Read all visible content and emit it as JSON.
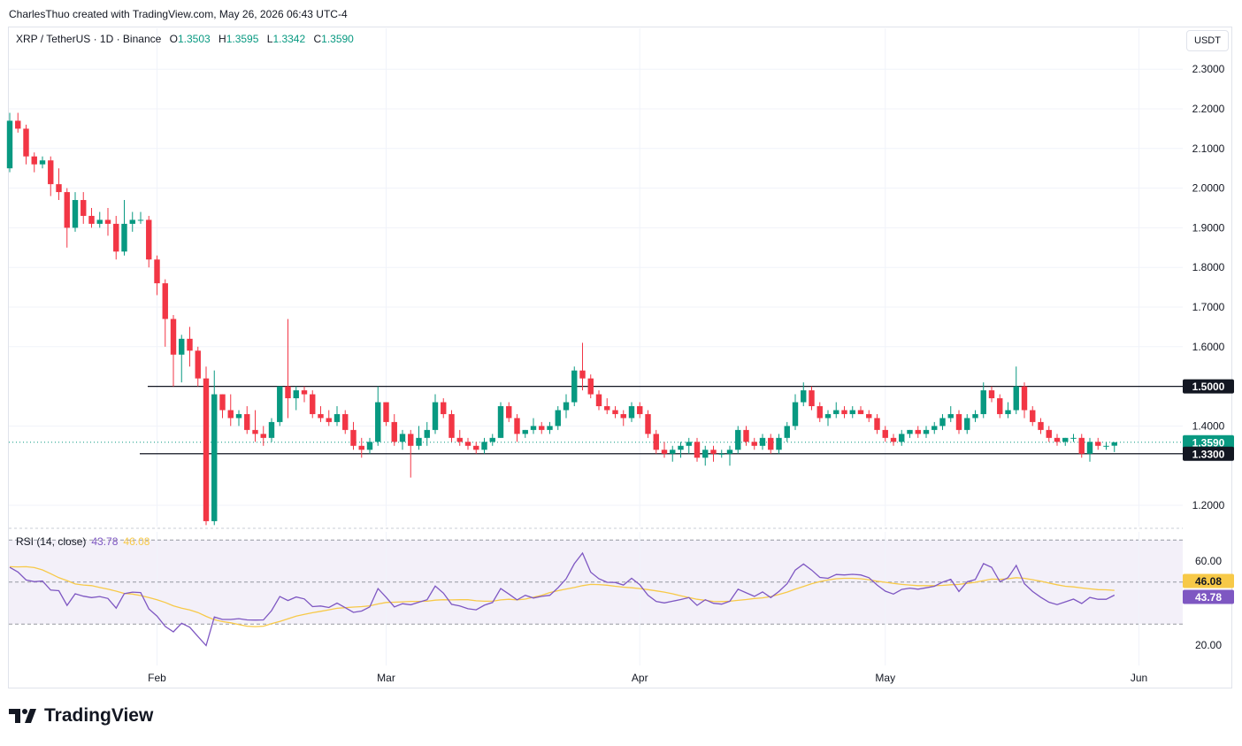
{
  "credit": "CharlesThuo created with TradingView.com, May 26, 2026 06:43 UTC-4",
  "legend": {
    "symbol": "XRP / TetherUS · 1D · Binance",
    "o_label": "O",
    "o": "1.3503",
    "h_label": "H",
    "h": "1.3595",
    "l_label": "L",
    "l": "1.3342",
    "c_label": "C",
    "c": "1.3590"
  },
  "currency": "USDT",
  "rsi_legend": {
    "label": "RSI (14, close)",
    "rsi": "43.78",
    "ma": "46.08"
  },
  "brand": "TradingView",
  "colors": {
    "up": "#089981",
    "down": "#f23645",
    "rsi": "#7e57c2",
    "rsi_ma": "#f7c948"
  },
  "chart_data": [
    {
      "type": "candlestick",
      "title": "XRP / TetherUS · 1D · Binance",
      "y_ticks": [
        1.2,
        1.4,
        1.5,
        1.6,
        1.7,
        1.8,
        1.9,
        2.0,
        2.1,
        2.2,
        2.3
      ],
      "ylim": [
        1.15,
        2.33
      ],
      "x_labels": [
        "Feb",
        "Mar",
        "Apr",
        "May",
        "Jun"
      ],
      "x_label_days": [
        18,
        46,
        77,
        107,
        138
      ],
      "horizontal_lines": [
        {
          "value": 1.5,
          "label": "1.5000"
        },
        {
          "value": 1.33,
          "label": "1.3300"
        }
      ],
      "last_price": {
        "value": 1.359,
        "label": "1.3590"
      },
      "ohlc": [
        [
          2.05,
          2.19,
          2.04,
          2.17
        ],
        [
          2.17,
          2.19,
          2.14,
          2.15
        ],
        [
          2.15,
          2.16,
          2.06,
          2.08
        ],
        [
          2.08,
          2.09,
          2.04,
          2.06
        ],
        [
          2.06,
          2.08,
          2.05,
          2.07
        ],
        [
          2.07,
          2.08,
          1.98,
          2.01
        ],
        [
          2.01,
          2.05,
          1.97,
          1.99
        ],
        [
          1.99,
          2.0,
          1.85,
          1.9
        ],
        [
          1.9,
          1.99,
          1.89,
          1.97
        ],
        [
          1.97,
          1.99,
          1.91,
          1.93
        ],
        [
          1.93,
          1.95,
          1.9,
          1.91
        ],
        [
          1.91,
          1.94,
          1.9,
          1.92
        ],
        [
          1.92,
          1.95,
          1.88,
          1.91
        ],
        [
          1.91,
          1.93,
          1.82,
          1.84
        ],
        [
          1.84,
          1.97,
          1.83,
          1.91
        ],
        [
          1.91,
          1.94,
          1.89,
          1.92
        ],
        [
          1.92,
          1.94,
          1.91,
          1.92
        ],
        [
          1.92,
          1.93,
          1.8,
          1.82
        ],
        [
          1.82,
          1.83,
          1.73,
          1.76
        ],
        [
          1.76,
          1.77,
          1.6,
          1.67
        ],
        [
          1.67,
          1.68,
          1.5,
          1.58
        ],
        [
          1.58,
          1.63,
          1.51,
          1.62
        ],
        [
          1.62,
          1.65,
          1.55,
          1.59
        ],
        [
          1.59,
          1.6,
          1.5,
          1.52
        ],
        [
          1.52,
          1.55,
          1.15,
          1.16
        ],
        [
          1.16,
          1.54,
          1.15,
          1.48
        ],
        [
          1.48,
          1.48,
          1.42,
          1.44
        ],
        [
          1.44,
          1.48,
          1.4,
          1.42
        ],
        [
          1.42,
          1.44,
          1.4,
          1.43
        ],
        [
          1.43,
          1.45,
          1.38,
          1.39
        ],
        [
          1.39,
          1.44,
          1.36,
          1.38
        ],
        [
          1.38,
          1.4,
          1.35,
          1.37
        ],
        [
          1.37,
          1.42,
          1.36,
          1.41
        ],
        [
          1.41,
          1.5,
          1.4,
          1.5
        ],
        [
          1.5,
          1.67,
          1.42,
          1.47
        ],
        [
          1.47,
          1.5,
          1.44,
          1.49
        ],
        [
          1.49,
          1.5,
          1.46,
          1.48
        ],
        [
          1.48,
          1.49,
          1.42,
          1.43
        ],
        [
          1.43,
          1.45,
          1.41,
          1.42
        ],
        [
          1.42,
          1.44,
          1.4,
          1.41
        ],
        [
          1.41,
          1.45,
          1.4,
          1.43
        ],
        [
          1.43,
          1.44,
          1.38,
          1.39
        ],
        [
          1.39,
          1.41,
          1.34,
          1.35
        ],
        [
          1.35,
          1.37,
          1.32,
          1.34
        ],
        [
          1.34,
          1.37,
          1.33,
          1.36
        ],
        [
          1.36,
          1.5,
          1.35,
          1.46
        ],
        [
          1.46,
          1.46,
          1.4,
          1.41
        ],
        [
          1.41,
          1.43,
          1.35,
          1.36
        ],
        [
          1.36,
          1.39,
          1.34,
          1.38
        ],
        [
          1.38,
          1.39,
          1.27,
          1.35
        ],
        [
          1.35,
          1.4,
          1.34,
          1.37
        ],
        [
          1.37,
          1.41,
          1.35,
          1.39
        ],
        [
          1.39,
          1.48,
          1.38,
          1.46
        ],
        [
          1.46,
          1.47,
          1.42,
          1.43
        ],
        [
          1.43,
          1.44,
          1.36,
          1.37
        ],
        [
          1.37,
          1.39,
          1.35,
          1.36
        ],
        [
          1.36,
          1.37,
          1.34,
          1.35
        ],
        [
          1.35,
          1.36,
          1.33,
          1.34
        ],
        [
          1.34,
          1.37,
          1.33,
          1.36
        ],
        [
          1.36,
          1.38,
          1.35,
          1.37
        ],
        [
          1.37,
          1.46,
          1.37,
          1.45
        ],
        [
          1.45,
          1.46,
          1.41,
          1.42
        ],
        [
          1.42,
          1.43,
          1.36,
          1.38
        ],
        [
          1.38,
          1.39,
          1.37,
          1.39
        ],
        [
          1.39,
          1.42,
          1.38,
          1.4
        ],
        [
          1.4,
          1.41,
          1.38,
          1.39
        ],
        [
          1.39,
          1.41,
          1.38,
          1.4
        ],
        [
          1.4,
          1.45,
          1.39,
          1.44
        ],
        [
          1.44,
          1.48,
          1.42,
          1.46
        ],
        [
          1.46,
          1.55,
          1.45,
          1.54
        ],
        [
          1.54,
          1.61,
          1.49,
          1.52
        ],
        [
          1.52,
          1.53,
          1.47,
          1.48
        ],
        [
          1.48,
          1.49,
          1.44,
          1.45
        ],
        [
          1.45,
          1.47,
          1.43,
          1.44
        ],
        [
          1.44,
          1.45,
          1.42,
          1.43
        ],
        [
          1.43,
          1.44,
          1.4,
          1.42
        ],
        [
          1.42,
          1.46,
          1.41,
          1.45
        ],
        [
          1.45,
          1.46,
          1.42,
          1.43
        ],
        [
          1.43,
          1.44,
          1.37,
          1.38
        ],
        [
          1.38,
          1.39,
          1.33,
          1.34
        ],
        [
          1.34,
          1.36,
          1.32,
          1.33
        ],
        [
          1.33,
          1.35,
          1.31,
          1.34
        ],
        [
          1.34,
          1.36,
          1.32,
          1.35
        ],
        [
          1.35,
          1.37,
          1.33,
          1.36
        ],
        [
          1.36,
          1.37,
          1.31,
          1.32
        ],
        [
          1.32,
          1.35,
          1.3,
          1.34
        ],
        [
          1.34,
          1.35,
          1.31,
          1.33
        ],
        [
          1.33,
          1.34,
          1.32,
          1.33
        ],
        [
          1.33,
          1.35,
          1.3,
          1.34
        ],
        [
          1.34,
          1.4,
          1.33,
          1.39
        ],
        [
          1.39,
          1.4,
          1.35,
          1.36
        ],
        [
          1.36,
          1.37,
          1.34,
          1.35
        ],
        [
          1.35,
          1.38,
          1.34,
          1.37
        ],
        [
          1.37,
          1.38,
          1.33,
          1.34
        ],
        [
          1.34,
          1.38,
          1.33,
          1.37
        ],
        [
          1.37,
          1.41,
          1.36,
          1.4
        ],
        [
          1.4,
          1.48,
          1.39,
          1.46
        ],
        [
          1.46,
          1.51,
          1.45,
          1.49
        ],
        [
          1.49,
          1.5,
          1.44,
          1.45
        ],
        [
          1.45,
          1.46,
          1.41,
          1.42
        ],
        [
          1.42,
          1.44,
          1.4,
          1.43
        ],
        [
          1.43,
          1.46,
          1.42,
          1.44
        ],
        [
          1.44,
          1.45,
          1.42,
          1.43
        ],
        [
          1.43,
          1.45,
          1.42,
          1.44
        ],
        [
          1.44,
          1.45,
          1.43,
          1.43
        ],
        [
          1.43,
          1.44,
          1.41,
          1.42
        ],
        [
          1.42,
          1.43,
          1.38,
          1.39
        ],
        [
          1.39,
          1.4,
          1.36,
          1.37
        ],
        [
          1.37,
          1.38,
          1.35,
          1.36
        ],
        [
          1.36,
          1.39,
          1.35,
          1.38
        ],
        [
          1.38,
          1.39,
          1.37,
          1.39
        ],
        [
          1.39,
          1.4,
          1.37,
          1.38
        ],
        [
          1.38,
          1.4,
          1.37,
          1.39
        ],
        [
          1.39,
          1.41,
          1.38,
          1.4
        ],
        [
          1.4,
          1.43,
          1.39,
          1.42
        ],
        [
          1.42,
          1.45,
          1.41,
          1.43
        ],
        [
          1.43,
          1.44,
          1.38,
          1.39
        ],
        [
          1.39,
          1.43,
          1.38,
          1.42
        ],
        [
          1.42,
          1.44,
          1.41,
          1.43
        ],
        [
          1.43,
          1.51,
          1.42,
          1.49
        ],
        [
          1.49,
          1.5,
          1.46,
          1.47
        ],
        [
          1.47,
          1.48,
          1.42,
          1.43
        ],
        [
          1.43,
          1.46,
          1.42,
          1.44
        ],
        [
          1.44,
          1.55,
          1.43,
          1.5
        ],
        [
          1.5,
          1.51,
          1.42,
          1.44
        ],
        [
          1.44,
          1.45,
          1.4,
          1.41
        ],
        [
          1.41,
          1.42,
          1.38,
          1.39
        ],
        [
          1.39,
          1.4,
          1.36,
          1.37
        ],
        [
          1.37,
          1.38,
          1.35,
          1.36
        ],
        [
          1.36,
          1.37,
          1.35,
          1.37
        ],
        [
          1.37,
          1.38,
          1.36,
          1.37
        ],
        [
          1.37,
          1.38,
          1.32,
          1.33
        ],
        [
          1.33,
          1.37,
          1.31,
          1.36
        ],
        [
          1.36,
          1.37,
          1.34,
          1.35
        ],
        [
          1.35,
          1.36,
          1.34,
          1.35
        ],
        [
          1.3503,
          1.3595,
          1.3342,
          1.359
        ]
      ]
    },
    {
      "type": "line",
      "title": "RSI (14, close)",
      "y_ticks": [
        20.0,
        60.0
      ],
      "ylim": [
        14,
        73
      ],
      "bands": [
        30,
        50,
        70
      ],
      "series": [
        {
          "name": "RSI",
          "color": "#7e57c2",
          "values": [
            57.0,
            54.8,
            51.0,
            50.2,
            50.5,
            46.2,
            45.9,
            38.9,
            44.4,
            43.3,
            42.6,
            43.1,
            42.2,
            37.6,
            44.5,
            45.2,
            45.0,
            37.2,
            33.8,
            28.9,
            26.3,
            30.4,
            28.5,
            24.1,
            19.8,
            33.4,
            32.2,
            32.2,
            32.6,
            32.0,
            31.9,
            32.0,
            36.4,
            43.1,
            41.2,
            42.9,
            42.0,
            38.3,
            38.6,
            37.9,
            40.0,
            37.8,
            35.6,
            36.2,
            38.2,
            46.9,
            42.8,
            38.2,
            39.7,
            39.2,
            40.4,
            41.6,
            48.1,
            44.7,
            39.4,
            38.6,
            37.3,
            36.8,
            39.0,
            40.3,
            46.9,
            44.3,
            41.5,
            43.7,
            42.4,
            43.2,
            43.7,
            47.3,
            51.6,
            58.8,
            63.8,
            54.7,
            51.6,
            49.9,
            49.8,
            48.6,
            51.8,
            48.7,
            43.7,
            40.8,
            40.1,
            40.9,
            41.7,
            42.6,
            38.9,
            41.6,
            39.9,
            39.5,
            40.9,
            46.6,
            44.9,
            43.2,
            45.3,
            42.6,
            45.5,
            49.2,
            55.7,
            58.6,
            55.7,
            52.2,
            51.8,
            53.6,
            53.4,
            53.7,
            53.4,
            52.1,
            48.6,
            45.7,
            44.3,
            46.5,
            47.1,
            46.6,
            47.3,
            48.0,
            50.0,
            51.3,
            45.5,
            50.1,
            51.2,
            58.8,
            57.0,
            50.2,
            52.1,
            57.9,
            49.2,
            45.5,
            42.8,
            40.4,
            39.3,
            40.6,
            41.9,
            39.8,
            42.7,
            41.8,
            41.8,
            43.78
          ]
        },
        {
          "name": "RSI-based MA",
          "color": "#f7c948",
          "values": [
            57.3,
            57.2,
            57.3,
            56.9,
            55.8,
            54.0,
            52.1,
            50.7,
            49.1,
            48.6,
            48.3,
            47.4,
            46.6,
            45.7,
            44.6,
            44.3,
            43.6,
            42.6,
            41.6,
            40.3,
            38.7,
            37.6,
            36.7,
            35.5,
            33.7,
            32.1,
            31.2,
            30.6,
            29.8,
            29.0,
            28.8,
            29.0,
            30.2,
            31.3,
            32.5,
            33.8,
            34.6,
            35.4,
            36.1,
            36.8,
            37.5,
            37.8,
            38.1,
            38.3,
            38.7,
            39.6,
            40.3,
            40.4,
            40.6,
            40.8,
            40.8,
            40.9,
            41.4,
            41.6,
            41.5,
            41.6,
            41.6,
            41.1,
            40.9,
            40.9,
            41.5,
            41.8,
            41.5,
            41.9,
            42.8,
            43.7,
            45.0,
            45.9,
            46.7,
            47.4,
            48.3,
            48.9,
            48.8,
            48.5,
            48.0,
            47.6,
            47.3,
            46.9,
            46.4,
            45.8,
            45.2,
            44.4,
            43.5,
            42.6,
            41.8,
            41.3,
            40.8,
            40.7,
            40.9,
            41.3,
            41.7,
            42.2,
            42.5,
            43.1,
            44.1,
            45.2,
            46.6,
            47.9,
            49.2,
            50.2,
            51.0,
            51.6,
            51.8,
            51.8,
            51.6,
            51.1,
            50.4,
            49.9,
            49.4,
            48.9,
            48.6,
            48.3,
            48.3,
            48.3,
            48.4,
            48.7,
            48.9,
            49.4,
            49.9,
            50.7,
            51.4,
            51.3,
            51.6,
            52.1,
            51.8,
            51.1,
            50.4,
            49.5,
            48.7,
            48.0,
            47.7,
            47.2,
            46.8,
            46.4,
            46.3,
            46.08
          ]
        }
      ],
      "last_values": {
        "RSI-based MA": "46.08",
        "RSI": "43.78"
      }
    }
  ]
}
